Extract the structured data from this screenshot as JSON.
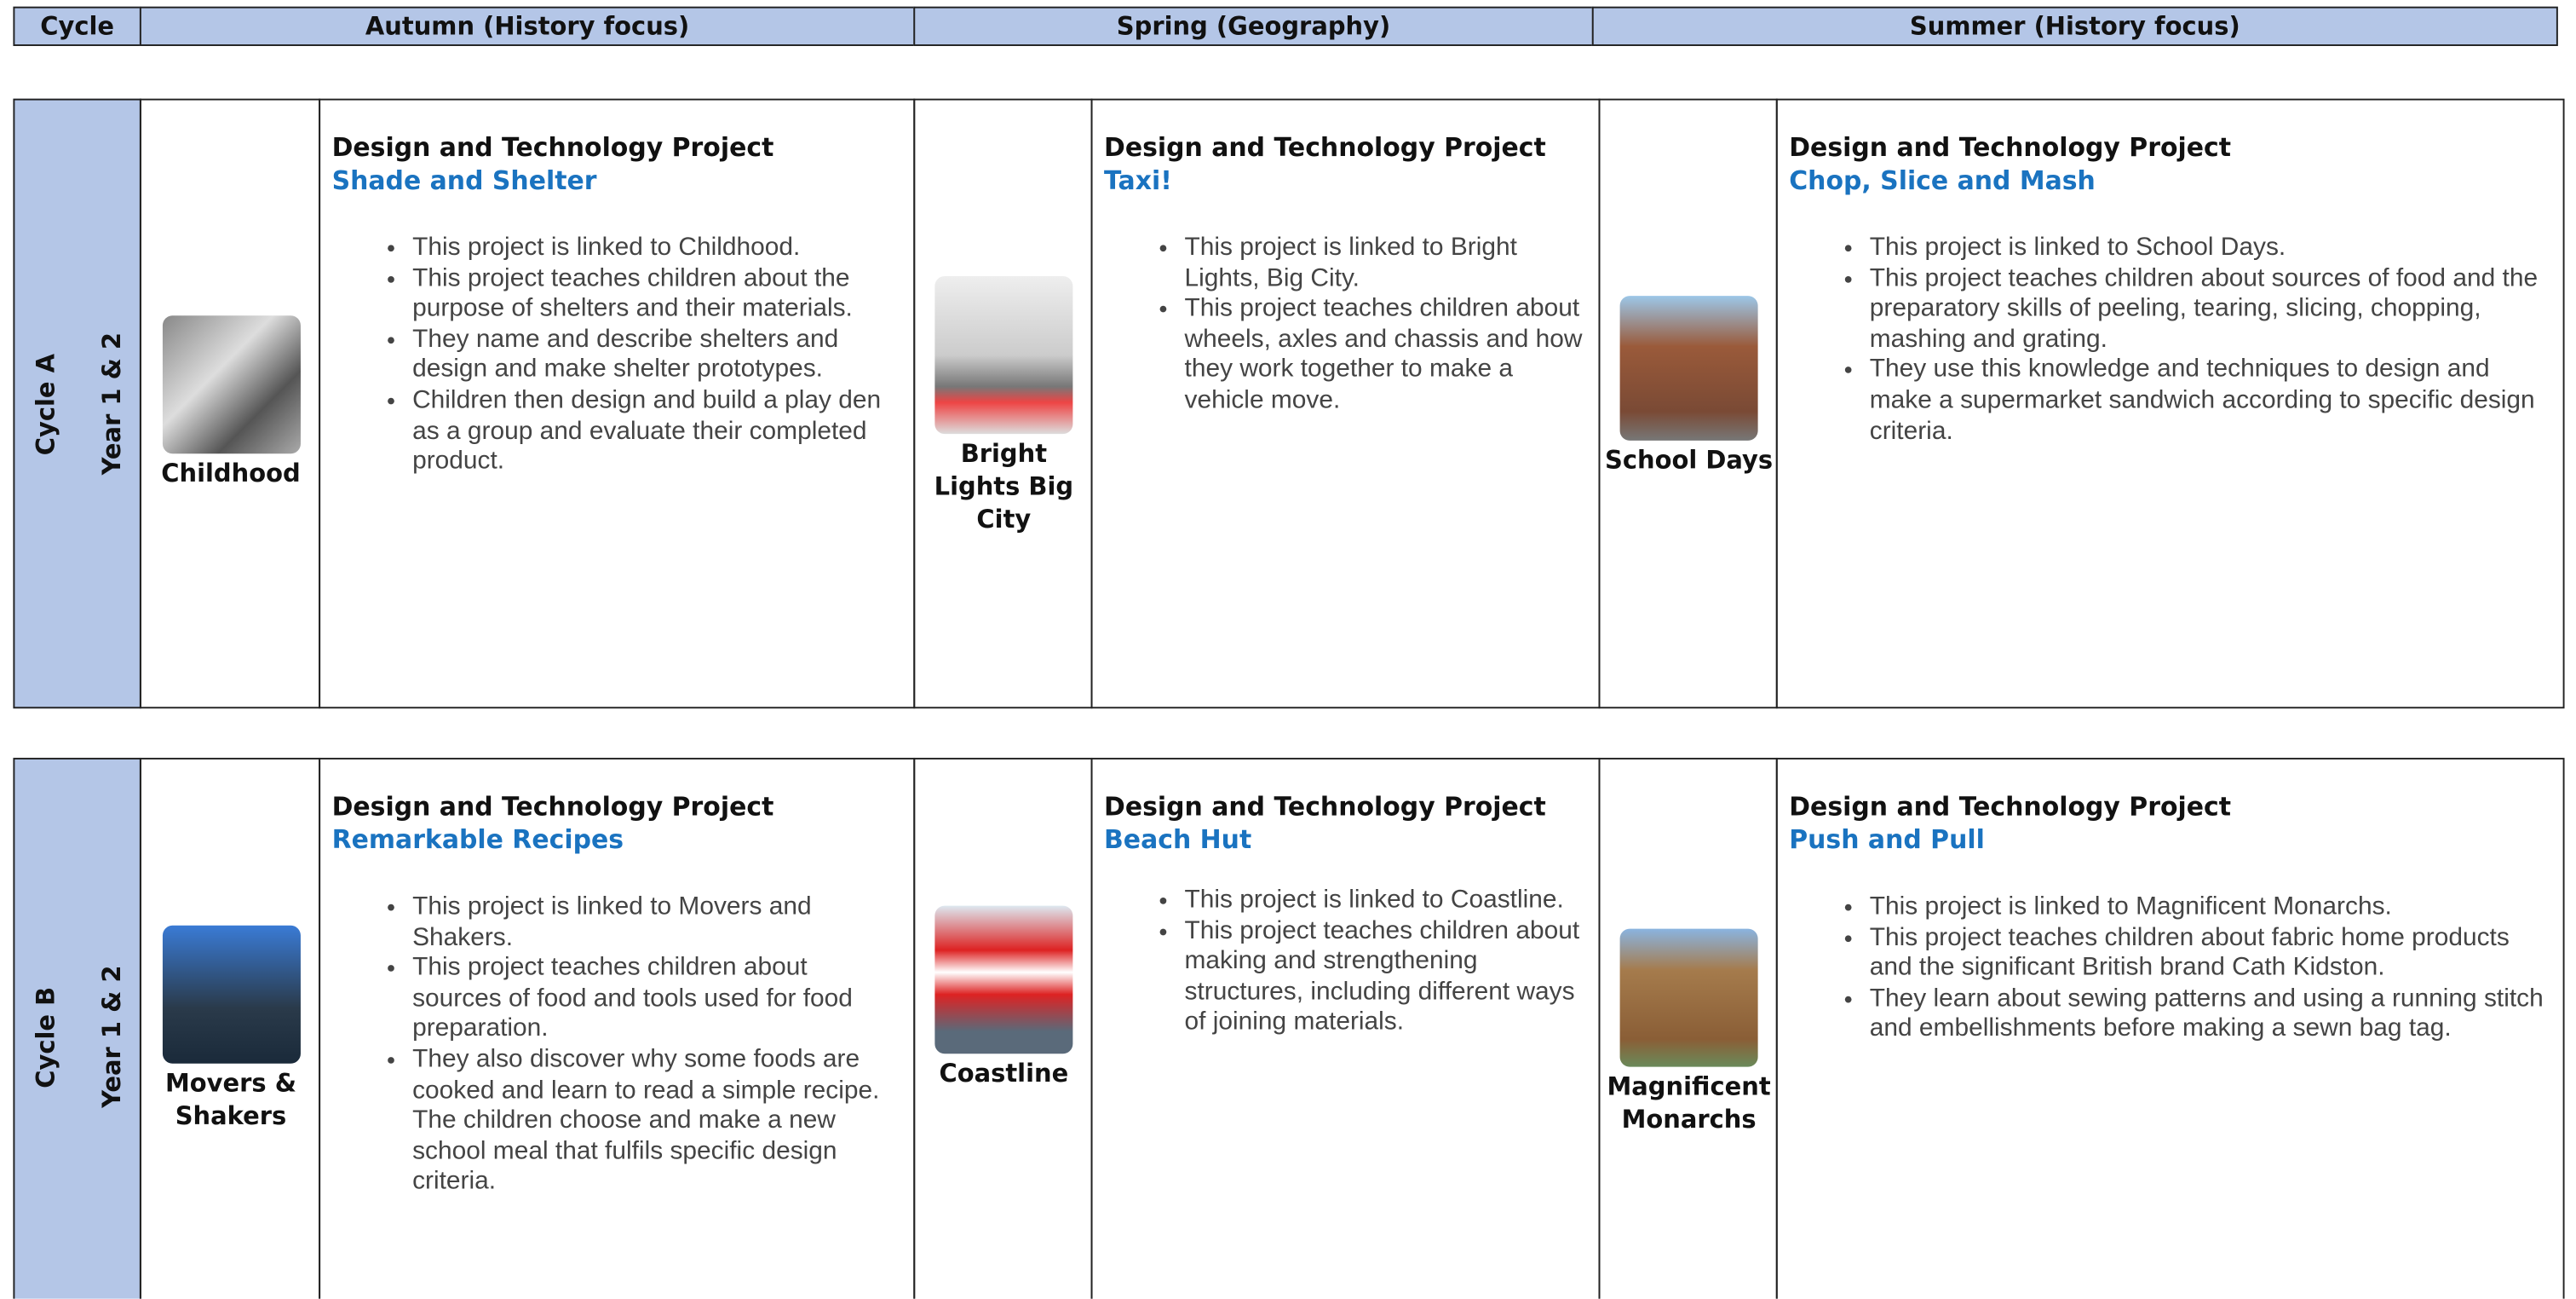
{
  "header": [
    "Cycle",
    "Autumn (History focus)",
    "Spring (Geography)",
    "Summer (History focus)"
  ],
  "cycles": [
    {
      "cycle": "Cycle A",
      "year": "Year 1 & 2",
      "terms": [
        {
          "topic": "Childhood",
          "heading": "Design and Technology Project",
          "project": "Shade and Shelter",
          "bullets": [
            "This project is linked to Childhood.",
            "This project teaches children about the purpose of shelters and their materials.",
            "They name and describe shelters and design and make shelter prototypes.",
            "Children then design and build a play den as a group and evaluate their completed product."
          ]
        },
        {
          "topic": "Bright Lights Big City",
          "heading": "Design and Technology Project",
          "project": "Taxi!",
          "bullets": [
            "This project is linked to Bright Lights, Big City.",
            "This project teaches children about wheels, axles and chassis and how they work together to make a vehicle move."
          ]
        },
        {
          "topic": "School Days",
          "heading": "Design and Technology Project",
          "project": "Chop, Slice and Mash",
          "bullets": [
            "This project is linked to School Days.",
            "This project teaches children about sources of food and the preparatory skills of peeling, tearing, slicing, chopping, mashing and grating.",
            "They use this knowledge and techniques to design and make a supermarket sandwich according to specific design criteria."
          ]
        }
      ]
    },
    {
      "cycle": "Cycle B",
      "year": "Year 1 & 2",
      "terms": [
        {
          "topic": "Movers & Shakers",
          "heading": "Design and Technology Project",
          "project": "Remarkable Recipes",
          "bullets": [
            "This project is linked to Movers and Shakers.",
            "This project teaches children about sources of food and tools used for food preparation.",
            "They also discover why some foods are cooked and learn to read a simple recipe. The children choose and make a new school meal that fulfils specific design criteria."
          ]
        },
        {
          "topic": "Coastline",
          "heading": "Design and Technology Project",
          "project": "Beach Hut",
          "bullets": [
            "This project is linked to Coastline.",
            "This project teaches children about making and strengthening structures, including different ways of joining materials."
          ]
        },
        {
          "topic": "Magnificent Monarchs",
          "heading": "Design and Technology Project",
          "project": "Push and Pull",
          "bullets": [
            "This project is linked to Magnificent Monarchs.",
            "This project teaches children about fabric home products and the significant British brand Cath Kidston.",
            "They learn about sewing patterns and using a running stitch and embellishments before making a sewn bag tag."
          ]
        }
      ]
    }
  ]
}
